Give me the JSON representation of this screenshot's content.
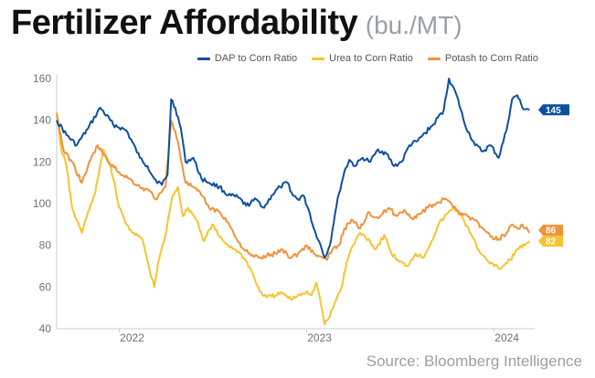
{
  "header": {
    "title": "Fertilizer Affordability",
    "subtitle": "(bu./MT)"
  },
  "source": "Source: Bloomberg Intelligence",
  "chart_data": {
    "type": "line",
    "title": "Fertilizer Affordability",
    "subtitle": "(bu./MT)",
    "xlabel": "",
    "ylabel": "",
    "ylim": [
      40,
      160
    ],
    "xlim": [
      "2021-09-01",
      "2024-03-20"
    ],
    "yticks": [
      40,
      60,
      80,
      100,
      120,
      140,
      160
    ],
    "xticks": [
      {
        "label": "2022",
        "date": "2022-01-01"
      },
      {
        "label": "2023",
        "date": "2023-01-01"
      },
      {
        "label": "2024",
        "date": "2024-01-01"
      }
    ],
    "grid": false,
    "legend_position": "top-right",
    "series": [
      {
        "name": "DAP to Corn Ratio",
        "color": "#0d4f9e",
        "end_label": "145",
        "points": [
          [
            "2021-09-01",
            140
          ],
          [
            "2021-09-20",
            133
          ],
          [
            "2021-10-10",
            128
          ],
          [
            "2021-11-01",
            136
          ],
          [
            "2021-11-25",
            146
          ],
          [
            "2021-12-20",
            138
          ],
          [
            "2022-01-15",
            135
          ],
          [
            "2022-02-10",
            122
          ],
          [
            "2022-02-25",
            118
          ],
          [
            "2022-03-10",
            112
          ],
          [
            "2022-03-25",
            109
          ],
          [
            "2022-04-05",
            114
          ],
          [
            "2022-04-12",
            150
          ],
          [
            "2022-04-20",
            146
          ],
          [
            "2022-05-01",
            136
          ],
          [
            "2022-05-10",
            120
          ],
          [
            "2022-05-25",
            122
          ],
          [
            "2022-06-10",
            112
          ],
          [
            "2022-06-25",
            110
          ],
          [
            "2022-07-15",
            108
          ],
          [
            "2022-08-01",
            104
          ],
          [
            "2022-08-20",
            103
          ],
          [
            "2022-09-05",
            99
          ],
          [
            "2022-09-25",
            102
          ],
          [
            "2022-10-10",
            98
          ],
          [
            "2022-10-25",
            104
          ],
          [
            "2022-11-10",
            108
          ],
          [
            "2022-11-25",
            110
          ],
          [
            "2022-12-05",
            104
          ],
          [
            "2022-12-15",
            102
          ],
          [
            "2022-12-25",
            104
          ],
          [
            "2023-01-05",
            97
          ],
          [
            "2023-01-15",
            88
          ],
          [
            "2023-01-25",
            82
          ],
          [
            "2023-02-05",
            74
          ],
          [
            "2023-02-15",
            80
          ],
          [
            "2023-02-25",
            95
          ],
          [
            "2023-03-05",
            105
          ],
          [
            "2023-03-15",
            115
          ],
          [
            "2023-03-25",
            121
          ],
          [
            "2023-04-05",
            118
          ],
          [
            "2023-04-20",
            122
          ],
          [
            "2023-05-05",
            120
          ],
          [
            "2023-05-20",
            126
          ],
          [
            "2023-06-05",
            124
          ],
          [
            "2023-06-20",
            118
          ],
          [
            "2023-07-05",
            120
          ],
          [
            "2023-07-20",
            128
          ],
          [
            "2023-08-05",
            130
          ],
          [
            "2023-08-20",
            134
          ],
          [
            "2023-09-05",
            138
          ],
          [
            "2023-09-25",
            145
          ],
          [
            "2023-10-05",
            160
          ],
          [
            "2023-10-20",
            152
          ],
          [
            "2023-11-05",
            138
          ],
          [
            "2023-11-25",
            128
          ],
          [
            "2023-12-10",
            125
          ],
          [
            "2023-12-25",
            128
          ],
          [
            "2024-01-10",
            122
          ],
          [
            "2024-01-25",
            135
          ],
          [
            "2024-02-05",
            150
          ],
          [
            "2024-02-15",
            152
          ],
          [
            "2024-02-25",
            146
          ],
          [
            "2024-03-10",
            145
          ]
        ]
      },
      {
        "name": "Urea to Corn Ratio",
        "color": "#f7c331",
        "end_label": "82",
        "points": [
          [
            "2021-09-01",
            144
          ],
          [
            "2021-09-10",
            126
          ],
          [
            "2021-09-20",
            118
          ],
          [
            "2021-10-01",
            98
          ],
          [
            "2021-10-10",
            92
          ],
          [
            "2021-10-20",
            86
          ],
          [
            "2021-11-01",
            96
          ],
          [
            "2021-11-15",
            105
          ],
          [
            "2021-12-01",
            126
          ],
          [
            "2021-12-15",
            118
          ],
          [
            "2022-01-01",
            98
          ],
          [
            "2022-01-15",
            90
          ],
          [
            "2022-02-01",
            85
          ],
          [
            "2022-02-15",
            83
          ],
          [
            "2022-03-01",
            68
          ],
          [
            "2022-03-10",
            60
          ],
          [
            "2022-03-20",
            74
          ],
          [
            "2022-04-01",
            85
          ],
          [
            "2022-04-15",
            104
          ],
          [
            "2022-04-25",
            108
          ],
          [
            "2022-05-05",
            94
          ],
          [
            "2022-05-15",
            98
          ],
          [
            "2022-06-01",
            92
          ],
          [
            "2022-06-15",
            82
          ],
          [
            "2022-07-01",
            90
          ],
          [
            "2022-07-15",
            84
          ],
          [
            "2022-08-01",
            80
          ],
          [
            "2022-08-15",
            78
          ],
          [
            "2022-09-01",
            74
          ],
          [
            "2022-09-15",
            68
          ],
          [
            "2022-10-01",
            58
          ],
          [
            "2022-10-15",
            55
          ],
          [
            "2022-11-01",
            56
          ],
          [
            "2022-11-15",
            57
          ],
          [
            "2022-12-01",
            54
          ],
          [
            "2022-12-15",
            56
          ],
          [
            "2023-01-01",
            58
          ],
          [
            "2023-01-10",
            56
          ],
          [
            "2023-01-20",
            62
          ],
          [
            "2023-02-01",
            48
          ],
          [
            "2023-02-05",
            42
          ],
          [
            "2023-02-15",
            46
          ],
          [
            "2023-03-01",
            55
          ],
          [
            "2023-03-10",
            60
          ],
          [
            "2023-03-20",
            72
          ],
          [
            "2023-04-01",
            80
          ],
          [
            "2023-04-15",
            86
          ],
          [
            "2023-05-01",
            83
          ],
          [
            "2023-05-15",
            78
          ],
          [
            "2023-06-01",
            85
          ],
          [
            "2023-06-15",
            76
          ],
          [
            "2023-07-01",
            72
          ],
          [
            "2023-07-15",
            70
          ],
          [
            "2023-08-01",
            76
          ],
          [
            "2023-08-15",
            74
          ],
          [
            "2023-09-01",
            82
          ],
          [
            "2023-09-15",
            90
          ],
          [
            "2023-10-01",
            95
          ],
          [
            "2023-10-15",
            98
          ],
          [
            "2023-11-01",
            93
          ],
          [
            "2023-11-15",
            86
          ],
          [
            "2023-12-01",
            78
          ],
          [
            "2023-12-15",
            74
          ],
          [
            "2024-01-01",
            70
          ],
          [
            "2024-01-15",
            69
          ],
          [
            "2024-02-01",
            73
          ],
          [
            "2024-02-15",
            78
          ],
          [
            "2024-03-01",
            80
          ],
          [
            "2024-03-10",
            82
          ]
        ]
      },
      {
        "name": "Potash to Corn Ratio",
        "color": "#f0923a",
        "end_label": "86",
        "points": [
          [
            "2021-09-01",
            143
          ],
          [
            "2021-09-15",
            125
          ],
          [
            "2021-10-01",
            120
          ],
          [
            "2021-10-20",
            110
          ],
          [
            "2021-11-01",
            118
          ],
          [
            "2021-11-20",
            128
          ],
          [
            "2021-12-10",
            120
          ],
          [
            "2022-01-01",
            115
          ],
          [
            "2022-01-20",
            112
          ],
          [
            "2022-02-10",
            108
          ],
          [
            "2022-03-01",
            106
          ],
          [
            "2022-03-15",
            102
          ],
          [
            "2022-04-01",
            108
          ],
          [
            "2022-04-12",
            140
          ],
          [
            "2022-04-25",
            130
          ],
          [
            "2022-05-10",
            110
          ],
          [
            "2022-05-25",
            108
          ],
          [
            "2022-06-10",
            104
          ],
          [
            "2022-06-25",
            98
          ],
          [
            "2022-07-15",
            96
          ],
          [
            "2022-08-01",
            91
          ],
          [
            "2022-08-15",
            84
          ],
          [
            "2022-09-01",
            78
          ],
          [
            "2022-09-15",
            75
          ],
          [
            "2022-10-01",
            74
          ],
          [
            "2022-10-15",
            75
          ],
          [
            "2022-11-01",
            76
          ],
          [
            "2022-11-15",
            78
          ],
          [
            "2022-12-01",
            74
          ],
          [
            "2022-12-15",
            76
          ],
          [
            "2023-01-01",
            80
          ],
          [
            "2023-01-15",
            76
          ],
          [
            "2023-02-01",
            74
          ],
          [
            "2023-02-10",
            73
          ],
          [
            "2023-02-20",
            78
          ],
          [
            "2023-03-05",
            80
          ],
          [
            "2023-03-15",
            88
          ],
          [
            "2023-04-01",
            92
          ],
          [
            "2023-04-15",
            88
          ],
          [
            "2023-05-01",
            96
          ],
          [
            "2023-05-20",
            93
          ],
          [
            "2023-06-10",
            98
          ],
          [
            "2023-06-25",
            94
          ],
          [
            "2023-07-10",
            97
          ],
          [
            "2023-07-25",
            93
          ],
          [
            "2023-08-10",
            95
          ],
          [
            "2023-08-25",
            98
          ],
          [
            "2023-09-10",
            100
          ],
          [
            "2023-09-25",
            102
          ],
          [
            "2023-10-10",
            100
          ],
          [
            "2023-10-25",
            96
          ],
          [
            "2023-11-10",
            94
          ],
          [
            "2023-11-25",
            92
          ],
          [
            "2023-12-10",
            88
          ],
          [
            "2023-12-25",
            84
          ],
          [
            "2024-01-10",
            83
          ],
          [
            "2024-01-25",
            86
          ],
          [
            "2024-02-05",
            90
          ],
          [
            "2024-02-15",
            88
          ],
          [
            "2024-02-25",
            90
          ],
          [
            "2024-03-10",
            86
          ]
        ]
      }
    ]
  }
}
